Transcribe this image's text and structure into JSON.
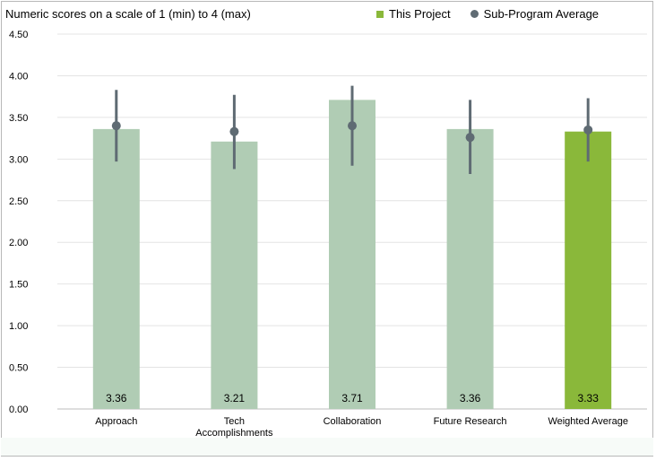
{
  "chart_data": {
    "type": "bar",
    "subtitle": "Numeric scores on a scale of 1 (min) to 4 (max)",
    "categories": [
      "Approach",
      "Tech\nAccomplishments",
      "Collaboration",
      "Future Research",
      "Weighted Average"
    ],
    "series": [
      {
        "name": "This Project",
        "values": [
          3.36,
          3.21,
          3.71,
          3.36,
          3.33
        ],
        "labels": [
          "3.36",
          "3.21",
          "3.71",
          "3.36",
          "3.33"
        ],
        "colors": [
          "#b0ccb4",
          "#b0ccb4",
          "#b0ccb4",
          "#b0ccb4",
          "#8ab83a"
        ]
      },
      {
        "name": "Sub-Program Average",
        "type": "point-with-errorbar",
        "values": [
          3.4,
          3.33,
          3.4,
          3.26,
          3.35
        ],
        "low": [
          2.97,
          2.88,
          2.92,
          2.82,
          2.97
        ],
        "high": [
          3.83,
          3.77,
          3.88,
          3.71,
          3.73
        ],
        "color": "#5f6b73"
      }
    ],
    "ylim": [
      0,
      4.5
    ],
    "yticks": [
      "0.00",
      "0.50",
      "1.00",
      "1.50",
      "2.00",
      "2.50",
      "3.00",
      "3.50",
      "4.00",
      "4.50"
    ],
    "grid": true,
    "legend_position": "top-right"
  },
  "legend": {
    "this_project": "This Project",
    "sub_program": "Sub-Program Average",
    "this_project_color": "#8ab83a",
    "sub_program_color": "#5f6b73"
  }
}
